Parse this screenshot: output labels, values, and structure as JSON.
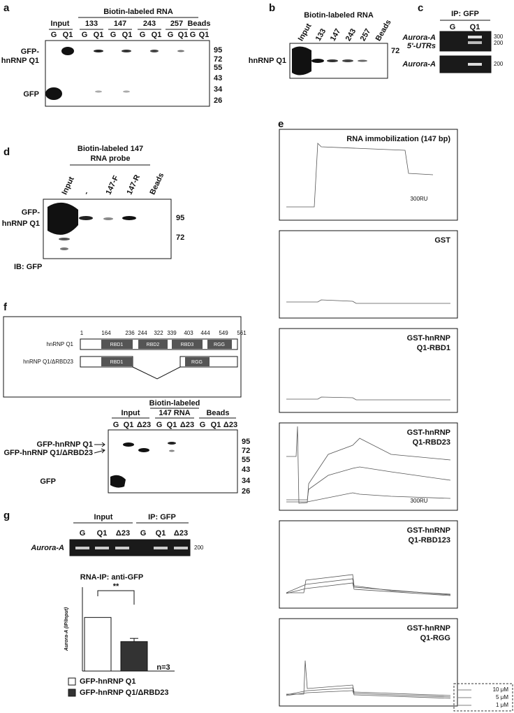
{
  "panels": {
    "a": {
      "letter": "a",
      "header": "Biotin-labeled RNA",
      "groups": [
        "Input",
        "133",
        "147",
        "243",
        "257",
        "Beads"
      ],
      "lanes": [
        "G",
        "Q1",
        "G",
        "Q1",
        "G",
        "Q1",
        "G",
        "Q1",
        "G",
        "Q1",
        "G",
        "Q1"
      ],
      "band_labels": [
        "GFP-",
        "hnRNP Q1",
        "GFP"
      ],
      "markers": [
        "95",
        "72",
        "55",
        "43",
        "34",
        "26"
      ]
    },
    "b": {
      "letter": "b",
      "header": "Biotin-labeled RNA",
      "lanes": [
        "Input",
        "133",
        "147",
        "243",
        "257",
        "Beads"
      ],
      "band_label": "hnRNP Q1",
      "marker": "72"
    },
    "c": {
      "letter": "c",
      "header": "IP: GFP",
      "lanes": [
        "G",
        "Q1"
      ],
      "row_labels": [
        "Aurora-A",
        "5'-UTRs",
        "Aurora-A"
      ],
      "markers": [
        "300",
        "200",
        "200"
      ]
    },
    "d": {
      "letter": "d",
      "header": [
        "Biotin-labeled 147",
        "RNA probe"
      ],
      "lanes": [
        "Input",
        "-",
        "147-F",
        "147-R",
        "Beads"
      ],
      "band_labels": [
        "GFP-",
        "hnRNP Q1"
      ],
      "markers": [
        "95",
        "72"
      ],
      "footer": "IB: GFP"
    },
    "e": {
      "letter": "e",
      "plots": [
        {
          "title": [
            "RNA immobilization  (147 bp)"
          ],
          "note": "300RU"
        },
        {
          "title": [
            "GST"
          ]
        },
        {
          "title": [
            "GST-hnRNP",
            "Q1-RBD1"
          ]
        },
        {
          "title": [
            "GST-hnRNP",
            "Q1-RBD23"
          ],
          "note": "300RU"
        },
        {
          "title": [
            "GST-hnRNP",
            "Q1-RBD123"
          ]
        },
        {
          "title": [
            "GST-hnRNP",
            "Q1-RGG"
          ]
        }
      ],
      "legend": [
        "10 μM",
        "5 μM",
        "1 μM"
      ]
    },
    "f": {
      "letter": "f",
      "constructs": [
        "hnRNP Q1",
        "hnRNP Q1/ΔRBD23"
      ],
      "positions": [
        "1",
        "164",
        "236",
        "244",
        "322",
        "339",
        "403",
        "444",
        "549",
        "561"
      ],
      "domains": [
        "RBD1",
        "RBD2",
        "RBD3",
        "RGG",
        "RBD1",
        "RGG"
      ],
      "header": "Biotin-labeled",
      "groups": [
        "Input",
        "147 RNA",
        "Beads"
      ],
      "lanes": [
        "G",
        "Q1",
        "Δ23",
        "G",
        "Q1",
        "Δ23",
        "G",
        "Q1",
        "Δ23"
      ],
      "band_labels": [
        "GFP-hnRNP Q1",
        "GFP-hnRNP Q1/ΔRBD23",
        "GFP"
      ],
      "markers": [
        "95",
        "72",
        "55",
        "43",
        "34",
        "26"
      ]
    },
    "g": {
      "letter": "g",
      "groups": [
        "Input",
        "IP: GFP"
      ],
      "lanes": [
        "G",
        "Q1",
        "Δ23",
        "G",
        "Q1",
        "Δ23"
      ],
      "row_label": "Aurora-A",
      "marker": "200"
    }
  },
  "chart_data": {
    "type": "bar",
    "title": "RNA-IP: anti-GFP",
    "y_label": "Aurora-A (IP/Input)",
    "categories": [
      null
    ],
    "ylim": [
      0,
      1.5
    ],
    "series": [
      {
        "name": "GFP-hnRNP Q1",
        "color": "#ffffff",
        "values": [
          1
        ]
      },
      {
        "name": "GFP-hnRNP Q1/ΔRBD23",
        "color": "#333333",
        "values": [
          0.55
        ],
        "errors": [
          0.06
        ]
      }
    ],
    "annotations": [
      "**",
      "n=3"
    ]
  }
}
